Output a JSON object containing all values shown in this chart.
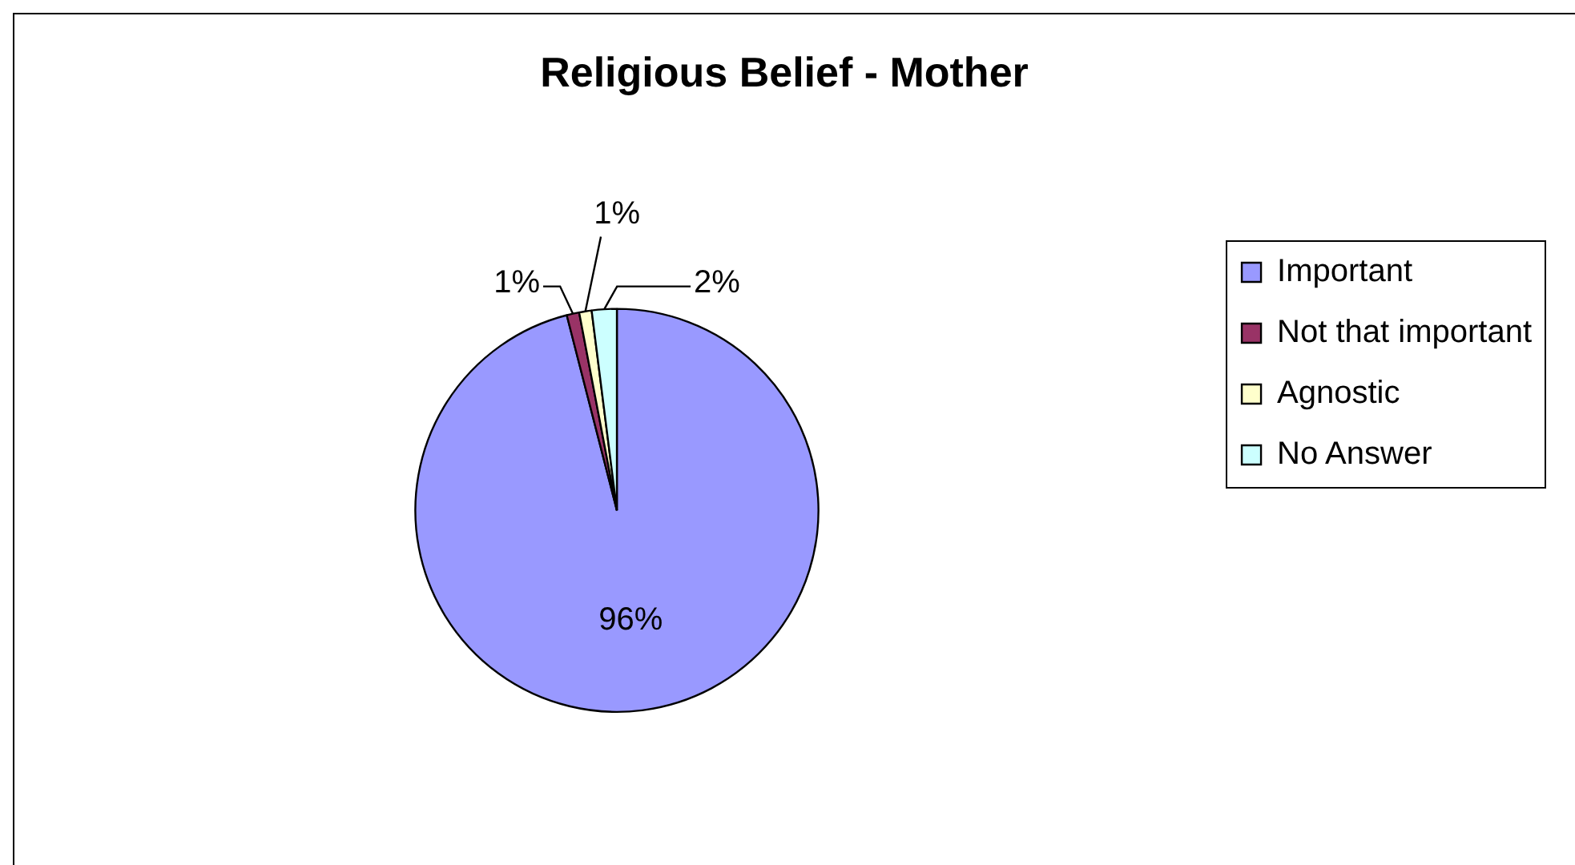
{
  "chart_data": {
    "type": "pie",
    "title": "Religious Belief - Mother",
    "categories": [
      "Important",
      "Not that important",
      "Agnostic",
      "No Answer"
    ],
    "values": [
      96,
      1,
      1,
      2
    ],
    "colors": [
      "#9999ff",
      "#993366",
      "#ffffcc",
      "#ccffff"
    ],
    "value_labels": [
      "96%",
      "1%",
      "1%",
      "2%"
    ],
    "legend": "right"
  }
}
